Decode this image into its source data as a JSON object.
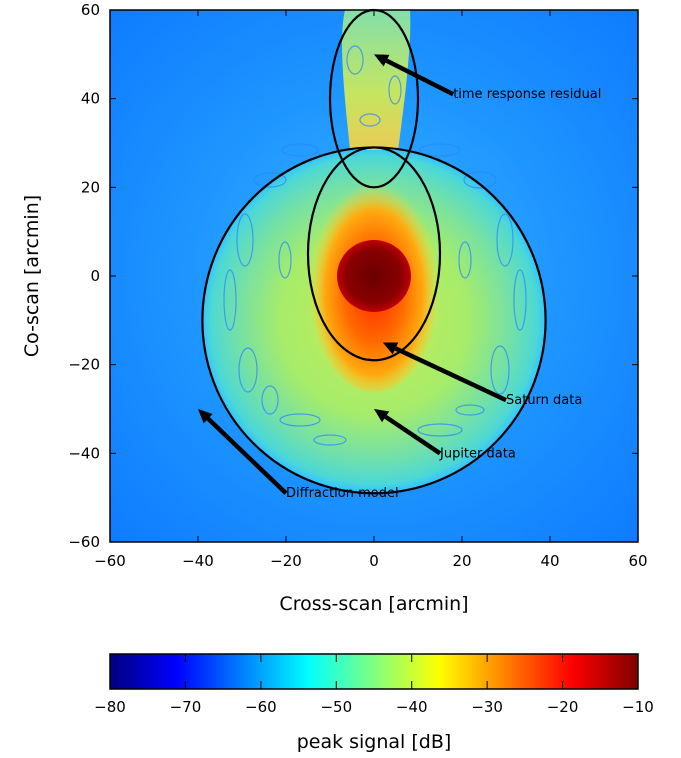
{
  "chart_data": [
    {
      "type": "heatmap",
      "xlabel": "Cross-scan [arcmin]",
      "ylabel": "Co-scan [arcmin]",
      "xlim": [
        -60,
        60
      ],
      "ylim": [
        -60,
        60
      ],
      "x_ticks": [
        "−60",
        "−40",
        "−20",
        "0",
        "20",
        "40",
        "60"
      ],
      "y_ticks": [
        "60",
        "40",
        "20",
        "0",
        "−20",
        "−40",
        "−60"
      ],
      "colormap": "jet",
      "annotations": [
        {
          "name": "time response residual",
          "text": "time response residual",
          "arrow_tip": [
            0,
            50
          ],
          "text_pos": [
            18,
            41
          ]
        },
        {
          "name": "saturn data",
          "text": "Saturn data",
          "arrow_tip": [
            2,
            -15
          ],
          "text_pos": [
            30,
            -28
          ]
        },
        {
          "name": "jupiter data",
          "text": "Jupiter data",
          "arrow_tip": [
            0,
            -30
          ],
          "text_pos": [
            15,
            -40
          ]
        },
        {
          "name": "diffraction model",
          "text": "Diffraction model",
          "arrow_tip": [
            -40,
            -30
          ],
          "text_pos": [
            -20,
            -49
          ]
        }
      ],
      "regions": [
        {
          "name": "time response residual",
          "shape": "ellipse",
          "center": [
            0,
            40
          ],
          "radius": [
            10,
            20
          ]
        },
        {
          "name": "saturn data",
          "shape": "ellipse",
          "center": [
            0,
            5
          ],
          "radius": [
            15,
            24
          ]
        },
        {
          "name": "jupiter data",
          "shape": "circle",
          "center": [
            0,
            -10
          ],
          "radius": [
            39,
            39
          ]
        }
      ]
    },
    {
      "type": "colorbar",
      "label": "peak signal [dB]",
      "range": [
        -80,
        -10
      ],
      "ticks": [
        "−80",
        "−70",
        "−60",
        "−50",
        "−40",
        "−30",
        "−20",
        "−10"
      ],
      "colormap": "jet"
    }
  ],
  "colors": {
    "background": "#1a8cff",
    "outer_ring": "#55ddcc",
    "ring_mid": "#99ee66",
    "warm": "#ffcc22",
    "hot": "#ff5500",
    "peak": "#7a0000"
  }
}
